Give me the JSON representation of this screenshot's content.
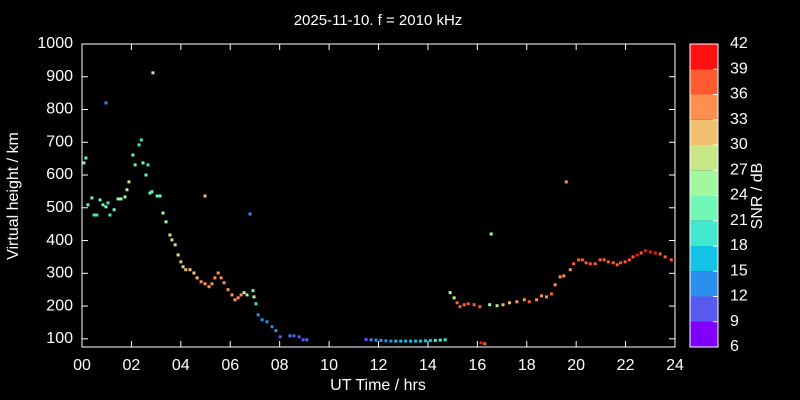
{
  "chart_data": {
    "type": "scatter",
    "title": "2025-11-10. f = 2010 kHz",
    "x_label": "UT Time / hrs",
    "y_label": "Virtual height / km",
    "xlim": [
      0,
      24
    ],
    "xticks": [
      {
        "value": 0,
        "label": "00"
      },
      {
        "value": 2,
        "label": "02"
      },
      {
        "value": 4,
        "label": "04"
      },
      {
        "value": 6,
        "label": "06"
      },
      {
        "value": 8,
        "label": "08"
      },
      10,
      12,
      14,
      16,
      18,
      20,
      22,
      24
    ],
    "ylim": [
      75,
      1000
    ],
    "yticks": [
      100,
      200,
      300,
      400,
      500,
      600,
      700,
      800,
      900,
      1000
    ],
    "colorbar": {
      "label": "SNR / dB",
      "ticks": [
        6,
        9,
        12,
        15,
        18,
        21,
        24,
        27,
        30,
        33,
        36,
        39,
        42
      ],
      "colors": [
        "#7f00ff",
        "#5a5af0",
        "#2b8ff0",
        "#12c3e6",
        "#40e8d0",
        "#70f8b8",
        "#a0f8a0",
        "#c8e888",
        "#f0c070",
        "#ff9050",
        "#ff5a30",
        "#ff1010"
      ]
    },
    "series": [
      {
        "x": [
          0.08,
          0.16,
          0.24,
          0.4,
          0.49,
          0.6,
          0.73,
          0.85,
          0.97,
          1.05,
          1.13,
          1.3,
          1.46,
          1.58,
          1.74,
          1.82,
          1.9,
          2.06,
          2.15,
          2.31,
          2.4,
          2.47,
          2.59,
          2.67,
          2.75,
          2.83,
          2.87,
          3.04,
          3.16,
          3.28,
          3.4,
          3.56,
          3.64,
          3.77,
          3.89,
          4.0,
          4.09,
          4.2,
          4.37,
          4.53,
          4.66,
          4.82,
          4.98,
          5.14,
          5.26,
          5.38,
          5.51,
          5.63,
          5.75,
          5.91,
          6.07,
          6.19,
          6.32,
          6.44,
          6.56,
          6.68,
          6.92,
          6.96,
          7.04,
          7.13,
          7.29,
          7.49,
          7.69,
          7.85,
          8.02,
          8.42,
          8.58,
          8.79,
          8.95,
          9.1,
          0.97,
          4.98,
          6.8,
          11.5,
          11.7,
          11.9,
          12.1,
          12.3,
          12.5,
          12.7,
          12.9,
          13.1,
          13.3,
          13.5,
          13.7,
          13.9,
          14.1,
          14.3,
          14.5,
          14.7,
          14.9,
          15.06,
          15.18,
          15.3,
          15.47,
          15.63,
          15.87,
          16.1,
          16.15,
          16.3,
          16.56,
          16.5,
          16.8,
          17.04,
          17.3,
          17.6,
          17.9,
          18.1,
          18.4,
          18.6,
          18.8,
          19.0,
          19.15,
          19.35,
          19.5,
          19.6,
          19.76,
          19.9,
          20.1,
          20.25,
          20.4,
          20.57,
          20.77,
          20.97,
          21.13,
          21.3,
          21.5,
          21.66,
          21.8,
          21.98,
          22.15,
          22.3,
          22.47,
          22.63,
          22.8,
          23.0,
          23.2,
          23.4,
          23.6,
          23.85
        ],
        "values": [
          637,
          652,
          509,
          530,
          478,
          478,
          524,
          509,
          503,
          515,
          478,
          494,
          527,
          527,
          533,
          555,
          579,
          661,
          631,
          692,
          707,
          637,
          600,
          631,
          545,
          549,
          912,
          536,
          536,
          484,
          457,
          417,
          402,
          387,
          356,
          335,
          320,
          311,
          311,
          301,
          286,
          274,
          268,
          259,
          268,
          286,
          301,
          286,
          271,
          250,
          234,
          219,
          225,
          234,
          241,
          234,
          247,
          228,
          207,
          173,
          158,
          152,
          137,
          125,
          106,
          109,
          109,
          106,
          97,
          97,
          820,
          536,
          481,
          98,
          97,
          96,
          95,
          94,
          93,
          93,
          93,
          93,
          93,
          93,
          93,
          94,
          95,
          95,
          96,
          97,
          241,
          225,
          210,
          198,
          204,
          207,
          204,
          198,
          88,
          85,
          420,
          204,
          201,
          204,
          210,
          213,
          219,
          213,
          219,
          231,
          228,
          237,
          265,
          289,
          292,
          579,
          311,
          329,
          341,
          341,
          332,
          329,
          329,
          341,
          341,
          335,
          332,
          326,
          332,
          335,
          341,
          350,
          356,
          362,
          369,
          365,
          362,
          359,
          350,
          341
        ],
        "snr": [
          22,
          23,
          21,
          22,
          19,
          20,
          21,
          22,
          21,
          20,
          19,
          22,
          25,
          24,
          25,
          26,
          27,
          23,
          21,
          19,
          20,
          22,
          21,
          20,
          22,
          21,
          25,
          22,
          21,
          24,
          25,
          27,
          28,
          27,
          29,
          30,
          28,
          31,
          30,
          32,
          32,
          33,
          34,
          33,
          35,
          34,
          34,
          33,
          34,
          35,
          35,
          34,
          33,
          34,
          29,
          26,
          22,
          25,
          20,
          14,
          13,
          13,
          12,
          12,
          11,
          12,
          11,
          11,
          10,
          11,
          13,
          32,
          12,
          11,
          12,
          12,
          13,
          14,
          14,
          15,
          15,
          15,
          15,
          15,
          16,
          17,
          17,
          18,
          18,
          19,
          25,
          28,
          37,
          38,
          37,
          38,
          37,
          37,
          40,
          38,
          26,
          25,
          27,
          30,
          31,
          34,
          33,
          37,
          35,
          34,
          33,
          36,
          35,
          34,
          33,
          34,
          34,
          36,
          36,
          37,
          38,
          36,
          37,
          37,
          36,
          37,
          38,
          37,
          36,
          37,
          38,
          38,
          39,
          38,
          40,
          39,
          40,
          38,
          38,
          37
        ]
      }
    ]
  }
}
